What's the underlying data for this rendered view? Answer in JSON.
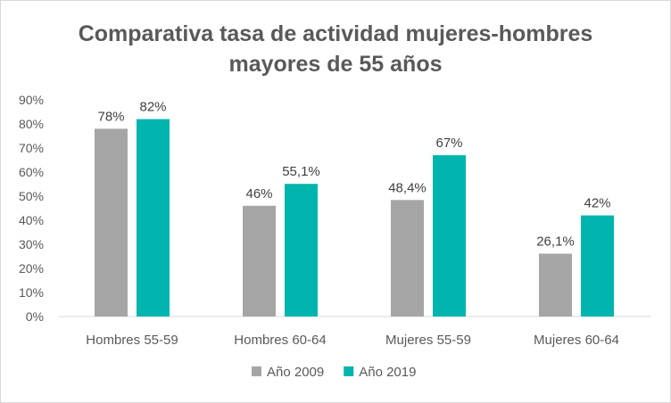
{
  "chart_data": {
    "type": "bar",
    "title_line1": "Comparativa tasa de actividad mujeres-hombres",
    "title_line2": "mayores de 55 años",
    "xlabel": "",
    "ylabel": "",
    "categories": [
      "Hombres 55-59",
      "Hombres 60-64",
      "Mujeres 55-59",
      "Mujeres 60-64"
    ],
    "series": [
      {
        "name": "Año 2009",
        "values": [
          78,
          46,
          48.4,
          26.1
        ],
        "labels": [
          "78%",
          "46%",
          "48,4%",
          "26,1%"
        ],
        "color": "#a5a5a5"
      },
      {
        "name": "Año 2019",
        "values": [
          82,
          55.1,
          67,
          42
        ],
        "labels": [
          "82%",
          "55,1%",
          "67%",
          "42%"
        ],
        "color": "#00b5ad"
      }
    ],
    "yticks": [
      "0%",
      "10%",
      "20%",
      "30%",
      "40%",
      "50%",
      "60%",
      "70%",
      "80%",
      "90%"
    ],
    "ylim": [
      0,
      90
    ],
    "grid": false,
    "legend": "bottom"
  }
}
